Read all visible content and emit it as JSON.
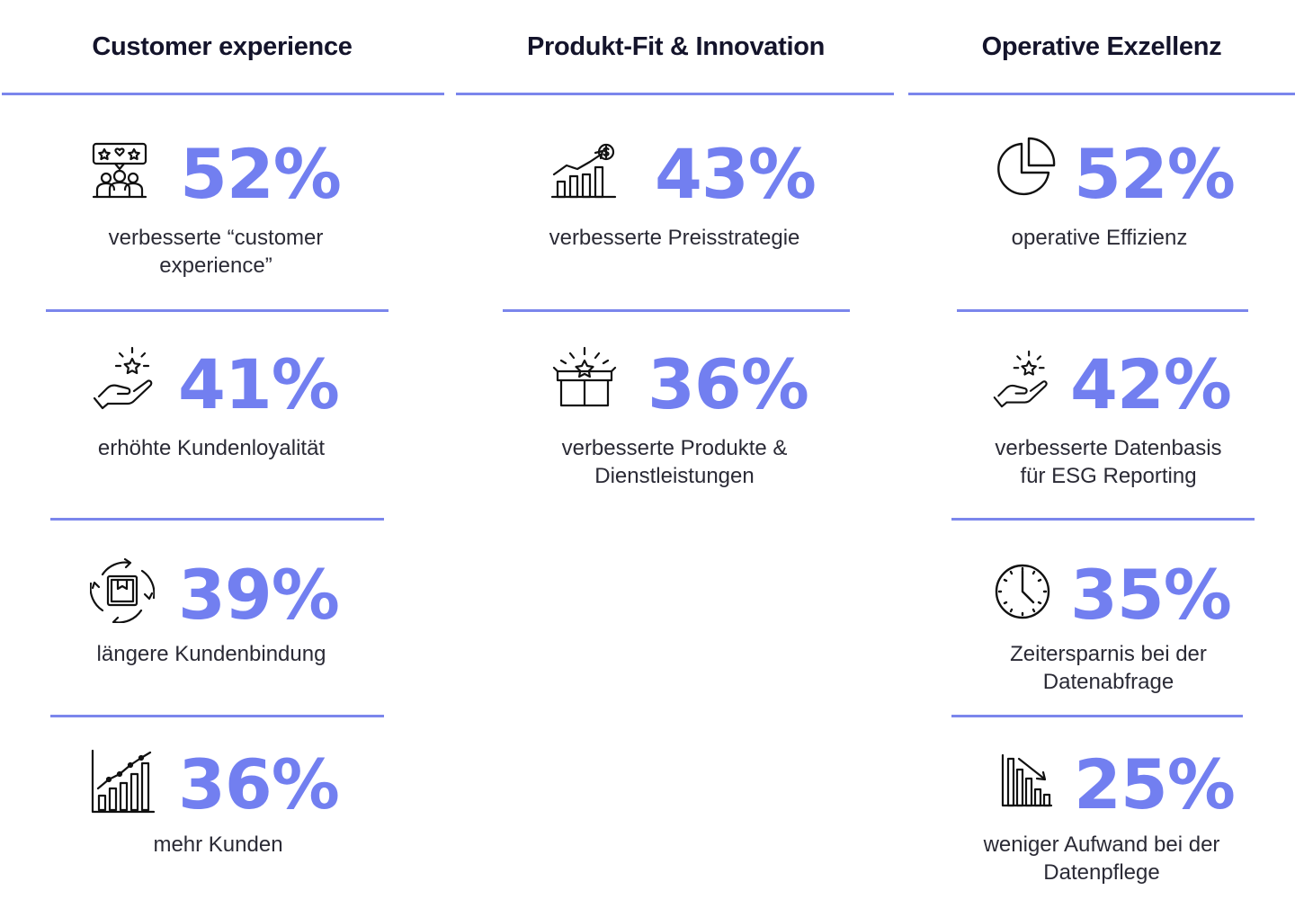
{
  "columns": [
    {
      "title": "Customer experience",
      "stats": [
        {
          "value": "52%",
          "label": "verbesserte “customer experience”",
          "icon": "reviews-team-icon"
        },
        {
          "value": "41%",
          "label": "erhöhte Kundenloyalität",
          "icon": "hand-star-icon"
        },
        {
          "value": "39%",
          "label": "längere Kundenbindung",
          "icon": "box-cycle-icon"
        },
        {
          "value": "36%",
          "label": "mehr Kunden",
          "icon": "growth-bar-chart-icon"
        }
      ]
    },
    {
      "title": "Produkt-Fit & Innovation",
      "stats": [
        {
          "value": "43%",
          "label": "verbesserte Preisstrategie",
          "icon": "price-growth-icon"
        },
        {
          "value": "36%",
          "label": "verbesserte Produkte & Dienstleistungen",
          "icon": "open-box-star-icon"
        }
      ]
    },
    {
      "title": "Operative Exzellenz",
      "stats": [
        {
          "value": "52%",
          "label": "operative Effizienz",
          "icon": "pie-chart-icon"
        },
        {
          "value": "42%",
          "label": "verbesserte Datenbasis für ESG Reporting",
          "icon": "hand-star-icon"
        },
        {
          "value": "35%",
          "label": "Zeitersparnis bei der Datenabfrage",
          "icon": "clock-icon"
        },
        {
          "value": "25%",
          "label": "weniger Aufwand bei der Datenpflege",
          "icon": "decline-bar-chart-icon"
        }
      ]
    }
  ],
  "colors": {
    "accent": "#727ff0",
    "rule": "#7b86ec",
    "title": "#14142b",
    "text": "#2a2a35"
  }
}
